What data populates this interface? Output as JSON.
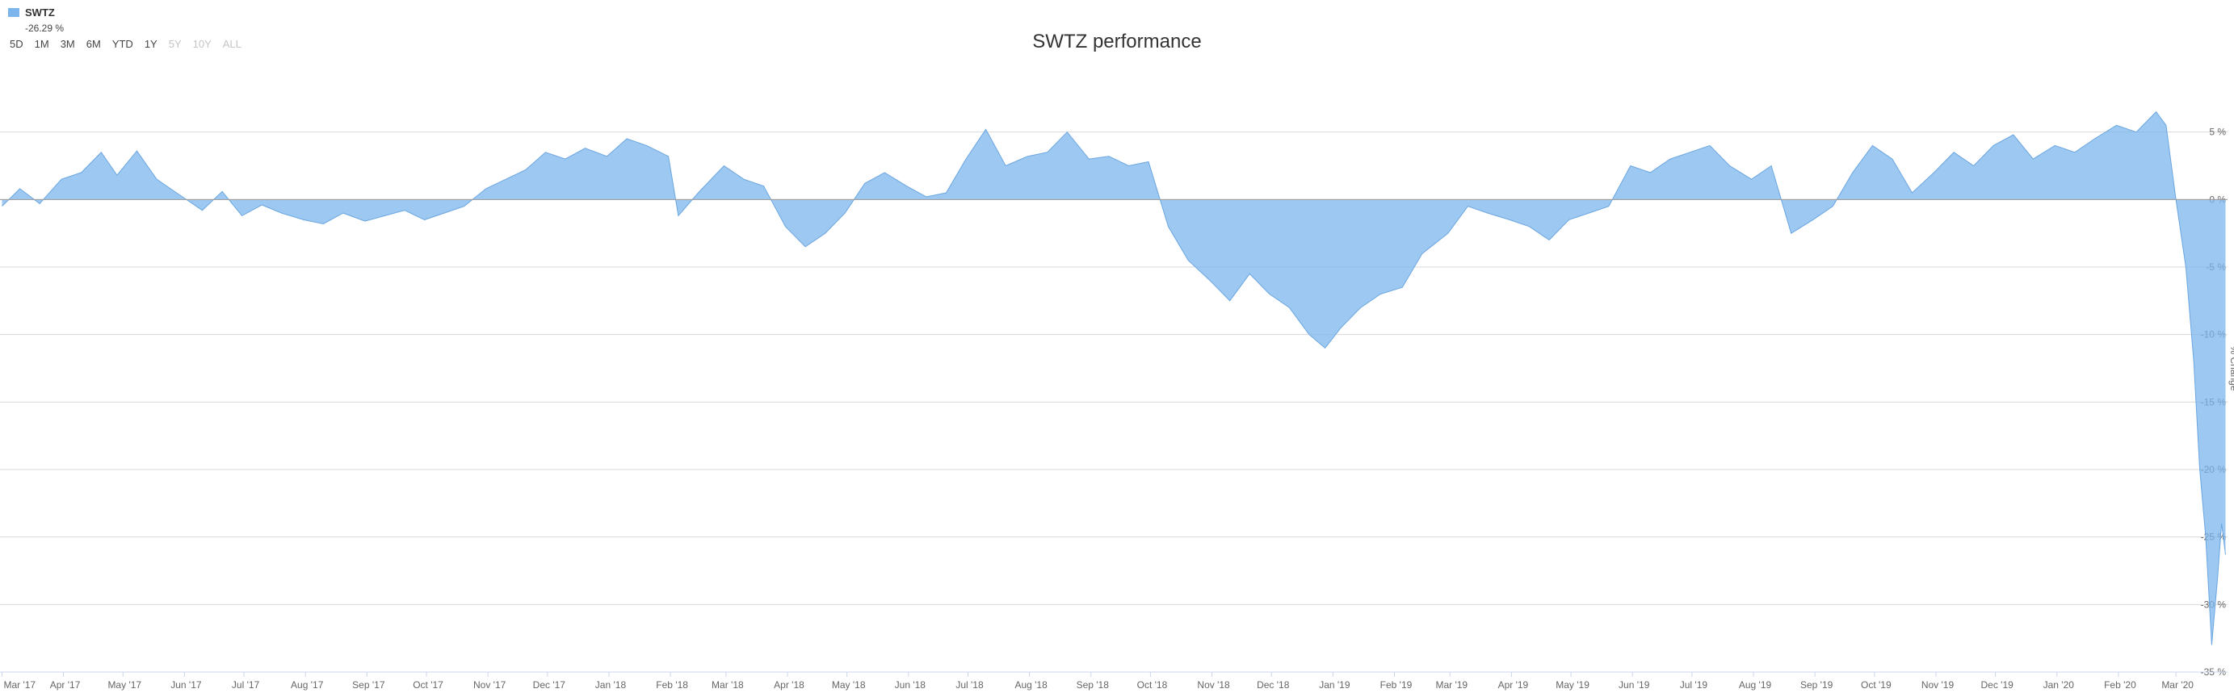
{
  "legend": {
    "name": "SWTZ",
    "change": "-26.29 %",
    "color": "#7cb5ec"
  },
  "range_buttons": [
    {
      "label": "5D",
      "enabled": true
    },
    {
      "label": "1M",
      "enabled": true
    },
    {
      "label": "3M",
      "enabled": true
    },
    {
      "label": "6M",
      "enabled": true
    },
    {
      "label": "YTD",
      "enabled": true
    },
    {
      "label": "1Y",
      "enabled": true
    },
    {
      "label": "5Y",
      "enabled": false
    },
    {
      "label": "10Y",
      "enabled": false
    },
    {
      "label": "ALL",
      "enabled": false
    }
  ],
  "chart_data": {
    "type": "area",
    "title": "SWTZ performance",
    "ylabel": "% Change",
    "xlabel": "",
    "ylim": [
      -35,
      10
    ],
    "yticks": [
      5,
      0,
      -5,
      -10,
      -15,
      -20,
      -25,
      -30,
      -35
    ],
    "ytick_labels": [
      "5 %",
      "0 %",
      "-5 %",
      "-10 %",
      "-15 %",
      "-20 %",
      "-25 %",
      "-30 %",
      "-35 %"
    ],
    "grid": true,
    "legend_position": "top-left",
    "x_tick_labels": [
      "Mar '17",
      "Apr '17",
      "May '17",
      "Jun '17",
      "Jul '17",
      "Aug '17",
      "Sep '17",
      "Oct '17",
      "Nov '17",
      "Dec '17",
      "Jan '18",
      "Feb '18",
      "Mar '18",
      "Apr '18",
      "May '18",
      "Jun '18",
      "Jul '18",
      "Aug '18",
      "Sep '18",
      "Oct '18",
      "Nov '18",
      "Dec '18",
      "Jan '19",
      "Feb '19",
      "Mar '19",
      "Apr '19",
      "May '19",
      "Jun '19",
      "Jul '19",
      "Aug '19",
      "Sep '19",
      "Oct '19",
      "Nov '19",
      "Dec '19",
      "Jan '20",
      "Feb '20",
      "Mar '20"
    ],
    "series": [
      {
        "name": "SWTZ",
        "color": "#7cb5ec",
        "points": [
          [
            "2017-03-01",
            -0.5
          ],
          [
            "2017-03-10",
            0.8
          ],
          [
            "2017-03-20",
            -0.3
          ],
          [
            "2017-03-31",
            1.5
          ],
          [
            "2017-04-10",
            2.0
          ],
          [
            "2017-04-20",
            3.5
          ],
          [
            "2017-04-28",
            1.8
          ],
          [
            "2017-05-08",
            3.6
          ],
          [
            "2017-05-18",
            1.5
          ],
          [
            "2017-05-31",
            0.2
          ],
          [
            "2017-06-10",
            -0.8
          ],
          [
            "2017-06-20",
            0.6
          ],
          [
            "2017-06-30",
            -1.2
          ],
          [
            "2017-07-10",
            -0.4
          ],
          [
            "2017-07-20",
            -1.0
          ],
          [
            "2017-07-31",
            -1.5
          ],
          [
            "2017-08-10",
            -1.8
          ],
          [
            "2017-08-20",
            -1.0
          ],
          [
            "2017-08-31",
            -1.6
          ],
          [
            "2017-09-10",
            -1.2
          ],
          [
            "2017-09-20",
            -0.8
          ],
          [
            "2017-09-30",
            -1.5
          ],
          [
            "2017-10-10",
            -1.0
          ],
          [
            "2017-10-20",
            -0.5
          ],
          [
            "2017-10-31",
            0.8
          ],
          [
            "2017-11-10",
            1.5
          ],
          [
            "2017-11-20",
            2.2
          ],
          [
            "2017-11-30",
            3.5
          ],
          [
            "2017-12-10",
            3.0
          ],
          [
            "2017-12-20",
            3.8
          ],
          [
            "2017-12-31",
            3.2
          ],
          [
            "2018-01-10",
            4.5
          ],
          [
            "2018-01-20",
            4.0
          ],
          [
            "2018-01-31",
            3.2
          ],
          [
            "2018-02-05",
            -1.2
          ],
          [
            "2018-02-15",
            0.5
          ],
          [
            "2018-02-28",
            2.5
          ],
          [
            "2018-03-10",
            1.5
          ],
          [
            "2018-03-20",
            1.0
          ],
          [
            "2018-03-31",
            -2.0
          ],
          [
            "2018-04-10",
            -3.5
          ],
          [
            "2018-04-20",
            -2.5
          ],
          [
            "2018-04-30",
            -1.0
          ],
          [
            "2018-05-10",
            1.2
          ],
          [
            "2018-05-20",
            2.0
          ],
          [
            "2018-05-31",
            1.0
          ],
          [
            "2018-06-10",
            0.2
          ],
          [
            "2018-06-20",
            0.5
          ],
          [
            "2018-06-30",
            3.0
          ],
          [
            "2018-07-10",
            5.2
          ],
          [
            "2018-07-20",
            2.5
          ],
          [
            "2018-07-31",
            3.2
          ],
          [
            "2018-08-10",
            3.5
          ],
          [
            "2018-08-20",
            5.0
          ],
          [
            "2018-08-31",
            3.0
          ],
          [
            "2018-09-10",
            3.2
          ],
          [
            "2018-09-20",
            2.5
          ],
          [
            "2018-09-30",
            2.8
          ],
          [
            "2018-10-10",
            -2.0
          ],
          [
            "2018-10-20",
            -4.5
          ],
          [
            "2018-10-31",
            -6.0
          ],
          [
            "2018-11-10",
            -7.5
          ],
          [
            "2018-11-20",
            -5.5
          ],
          [
            "2018-11-30",
            -7.0
          ],
          [
            "2018-12-10",
            -8.0
          ],
          [
            "2018-12-20",
            -10.0
          ],
          [
            "2018-12-28",
            -11.0
          ],
          [
            "2019-01-05",
            -9.5
          ],
          [
            "2019-01-15",
            -8.0
          ],
          [
            "2019-01-25",
            -7.0
          ],
          [
            "2019-02-05",
            -6.5
          ],
          [
            "2019-02-15",
            -4.0
          ],
          [
            "2019-02-28",
            -2.5
          ],
          [
            "2019-03-10",
            -0.5
          ],
          [
            "2019-03-20",
            -1.0
          ],
          [
            "2019-03-31",
            -1.5
          ],
          [
            "2019-04-10",
            -2.0
          ],
          [
            "2019-04-20",
            -3.0
          ],
          [
            "2019-04-30",
            -1.5
          ],
          [
            "2019-05-10",
            -1.0
          ],
          [
            "2019-05-20",
            -0.5
          ],
          [
            "2019-05-31",
            2.5
          ],
          [
            "2019-06-10",
            2.0
          ],
          [
            "2019-06-20",
            3.0
          ],
          [
            "2019-06-30",
            3.5
          ],
          [
            "2019-07-10",
            4.0
          ],
          [
            "2019-07-20",
            2.5
          ],
          [
            "2019-07-31",
            1.5
          ],
          [
            "2019-08-10",
            2.5
          ],
          [
            "2019-08-20",
            -2.5
          ],
          [
            "2019-08-31",
            -1.5
          ],
          [
            "2019-09-10",
            -0.5
          ],
          [
            "2019-09-20",
            2.0
          ],
          [
            "2019-09-30",
            4.0
          ],
          [
            "2019-10-10",
            3.0
          ],
          [
            "2019-10-20",
            0.5
          ],
          [
            "2019-10-31",
            2.0
          ],
          [
            "2019-11-10",
            3.5
          ],
          [
            "2019-11-20",
            2.5
          ],
          [
            "2019-11-30",
            4.0
          ],
          [
            "2019-12-10",
            4.8
          ],
          [
            "2019-12-20",
            3.0
          ],
          [
            "2019-12-31",
            4.0
          ],
          [
            "2020-01-10",
            3.5
          ],
          [
            "2020-01-20",
            4.5
          ],
          [
            "2020-01-31",
            5.5
          ],
          [
            "2020-02-10",
            5.0
          ],
          [
            "2020-02-20",
            6.5
          ],
          [
            "2020-02-25",
            5.5
          ],
          [
            "2020-03-01",
            0.0
          ],
          [
            "2020-03-06",
            -5.0
          ],
          [
            "2020-03-10",
            -12.0
          ],
          [
            "2020-03-13",
            -20.0
          ],
          [
            "2020-03-16",
            -25.0
          ],
          [
            "2020-03-19",
            -33.0
          ],
          [
            "2020-03-22",
            -28.0
          ],
          [
            "2020-03-24",
            -24.0
          ],
          [
            "2020-03-26",
            -26.29
          ]
        ]
      }
    ]
  }
}
